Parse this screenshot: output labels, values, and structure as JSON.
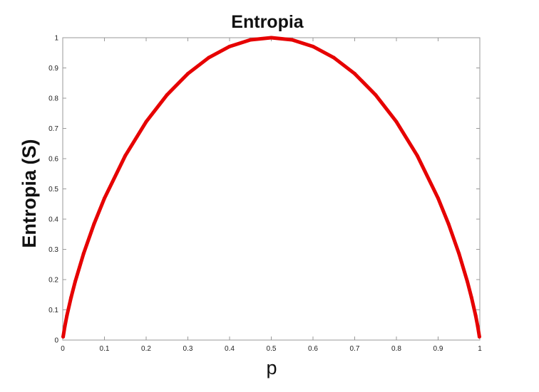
{
  "chart_data": {
    "type": "line",
    "title": "Entropia",
    "xlabel": "p",
    "ylabel": "Entropia (S)",
    "xlim": [
      0,
      1
    ],
    "ylim": [
      0,
      1
    ],
    "xticks": [
      "0",
      "0.1",
      "0.2",
      "0.3",
      "0.4",
      "0.5",
      "0.6",
      "0.7",
      "0.8",
      "0.9",
      "1"
    ],
    "yticks": [
      "0",
      "0.1",
      "0.2",
      "0.3",
      "0.4",
      "0.5",
      "0.6",
      "0.7",
      "0.8",
      "0.9",
      "1"
    ],
    "grid": false,
    "series": [
      {
        "color": "#e60000",
        "x": [
          0.001,
          0.005,
          0.01,
          0.02,
          0.03,
          0.05,
          0.075,
          0.1,
          0.15,
          0.2,
          0.25,
          0.3,
          0.35,
          0.4,
          0.45,
          0.5,
          0.55,
          0.6,
          0.65,
          0.7,
          0.75,
          0.8,
          0.85,
          0.9,
          0.925,
          0.95,
          0.97,
          0.98,
          0.99,
          0.995,
          0.999
        ],
        "y": [
          0.011,
          0.045,
          0.081,
          0.141,
          0.194,
          0.286,
          0.384,
          0.469,
          0.61,
          0.722,
          0.811,
          0.881,
          0.934,
          0.971,
          0.993,
          1.0,
          0.993,
          0.971,
          0.934,
          0.881,
          0.811,
          0.722,
          0.61,
          0.469,
          0.384,
          0.286,
          0.194,
          0.141,
          0.081,
          0.045,
          0.011
        ]
      }
    ]
  }
}
